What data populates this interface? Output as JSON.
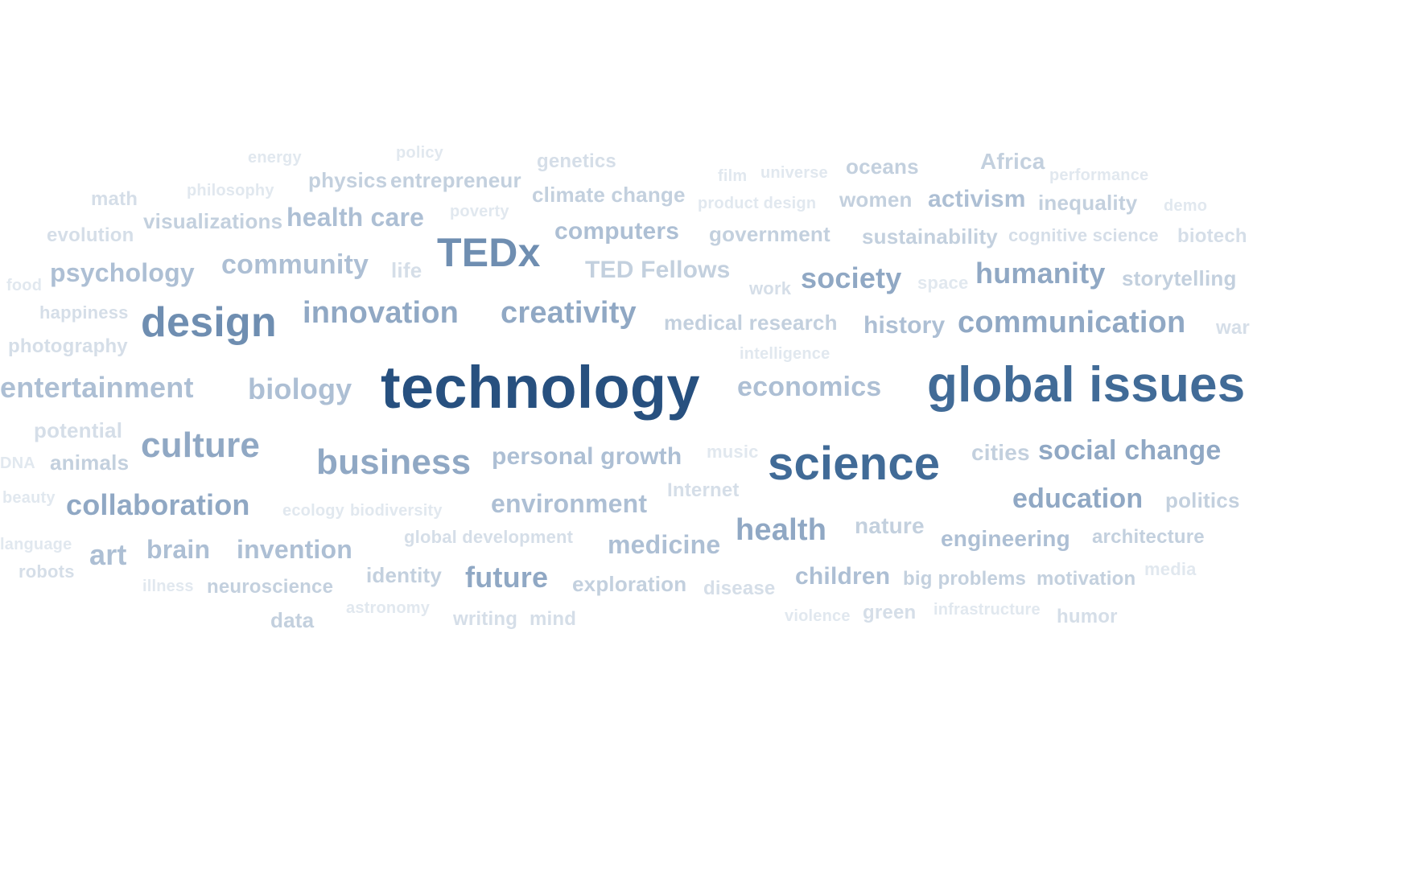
{
  "words": [
    {
      "text": "technology",
      "level": 1
    },
    {
      "text": "global issues",
      "level": 2
    },
    {
      "text": "science",
      "level": 2
    },
    {
      "text": "design",
      "level": 3
    },
    {
      "text": "TEDx",
      "level": 3
    },
    {
      "text": "culture",
      "level": 4
    },
    {
      "text": "business",
      "level": 4
    },
    {
      "text": "innovation",
      "level": 4
    },
    {
      "text": "creativity",
      "level": 4
    },
    {
      "text": "communication",
      "level": 4
    },
    {
      "text": "entertainment",
      "level": 5
    },
    {
      "text": "biology",
      "level": 5
    },
    {
      "text": "economics",
      "level": 5
    },
    {
      "text": "social change",
      "level": 4
    },
    {
      "text": "education",
      "level": 4
    },
    {
      "text": "health",
      "level": 4
    },
    {
      "text": "collaboration",
      "level": 4
    },
    {
      "text": "society",
      "level": 4
    },
    {
      "text": "humanity",
      "level": 4
    },
    {
      "text": "community",
      "level": 5
    },
    {
      "text": "psychology",
      "level": 5
    },
    {
      "text": "health care",
      "level": 5
    },
    {
      "text": "future",
      "level": 4
    },
    {
      "text": "medicine",
      "level": 5
    },
    {
      "text": "environment",
      "level": 5
    },
    {
      "text": "computers",
      "level": 5
    },
    {
      "text": "history",
      "level": 5
    },
    {
      "text": "personal growth",
      "level": 5
    },
    {
      "text": "brain",
      "level": 5
    },
    {
      "text": "invention",
      "level": 5
    },
    {
      "text": "art",
      "level": 5
    },
    {
      "text": "animals",
      "level": 6
    },
    {
      "text": "TED Fellows",
      "level": 6
    },
    {
      "text": "activism",
      "level": 5
    },
    {
      "text": "engineering",
      "level": 5
    },
    {
      "text": "children",
      "level": 5
    },
    {
      "text": "politics",
      "level": 6
    },
    {
      "text": "cities",
      "level": 6
    },
    {
      "text": "government",
      "level": 6
    },
    {
      "text": "storytelling",
      "level": 6
    },
    {
      "text": "medical research",
      "level": 6
    },
    {
      "text": "visualizations",
      "level": 6
    },
    {
      "text": "physics",
      "level": 6
    },
    {
      "text": "entrepreneur",
      "level": 6
    },
    {
      "text": "climate change",
      "level": 6
    },
    {
      "text": "women",
      "level": 6
    },
    {
      "text": "inequality",
      "level": 6
    },
    {
      "text": "oceans",
      "level": 6
    },
    {
      "text": "sustainability",
      "level": 6
    },
    {
      "text": "Africa",
      "level": 6
    },
    {
      "text": "identity",
      "level": 6
    },
    {
      "text": "neuroscience",
      "level": 6
    },
    {
      "text": "exploration",
      "level": 6
    },
    {
      "text": "nature",
      "level": 6
    },
    {
      "text": "architecture",
      "level": 6
    },
    {
      "text": "big problems",
      "level": 6
    },
    {
      "text": "motivation",
      "level": 6
    },
    {
      "text": "potential",
      "level": 7
    },
    {
      "text": "evolution",
      "level": 7
    },
    {
      "text": "genetics",
      "level": 7
    },
    {
      "text": "math",
      "level": 7
    },
    {
      "text": "life",
      "level": 7
    },
    {
      "text": "data",
      "level": 6
    },
    {
      "text": "writing",
      "level": 7
    },
    {
      "text": "mind",
      "level": 7
    },
    {
      "text": "robots",
      "level": 7
    },
    {
      "text": "disease",
      "level": 7
    },
    {
      "text": "global development",
      "level": 7
    },
    {
      "text": "Internet",
      "level": 7
    },
    {
      "text": "happiness",
      "level": 7
    },
    {
      "text": "photography",
      "level": 7
    },
    {
      "text": "humor",
      "level": 7
    },
    {
      "text": "green",
      "level": 7
    },
    {
      "text": "war",
      "level": 7
    },
    {
      "text": "biotech",
      "level": 7
    },
    {
      "text": "cognitive science",
      "level": 7
    },
    {
      "text": "work",
      "level": 7
    },
    {
      "text": "space",
      "level": 8
    },
    {
      "text": "music",
      "level": 8
    },
    {
      "text": "policy",
      "level": 8
    },
    {
      "text": "energy",
      "level": 8
    },
    {
      "text": "philosophy",
      "level": 8
    },
    {
      "text": "poverty",
      "level": 8
    },
    {
      "text": "film",
      "level": 8
    },
    {
      "text": "universe",
      "level": 8
    },
    {
      "text": "product design",
      "level": 8
    },
    {
      "text": "performance",
      "level": 8
    },
    {
      "text": "demo",
      "level": 8
    },
    {
      "text": "food",
      "level": 8
    },
    {
      "text": "intelligence",
      "level": 8
    },
    {
      "text": "DNA",
      "level": 8
    },
    {
      "text": "beauty",
      "level": 8
    },
    {
      "text": "ecology",
      "level": 8
    },
    {
      "text": "biodiversity",
      "level": 8
    },
    {
      "text": "language",
      "level": 8
    },
    {
      "text": "illness",
      "level": 8
    },
    {
      "text": "astronomy",
      "level": 8
    },
    {
      "text": "infrastructure",
      "level": 8
    },
    {
      "text": "violence",
      "level": 8
    },
    {
      "text": "media",
      "level": 8
    }
  ],
  "palette": {
    "1": "#27507f",
    "2": "#416b97",
    "3": "#6f8eb1",
    "4": "#90a8c4",
    "5": "#adbfd4",
    "6": "#c3d0de",
    "7": "#d5dee8",
    "8": "#e1e8ef"
  }
}
